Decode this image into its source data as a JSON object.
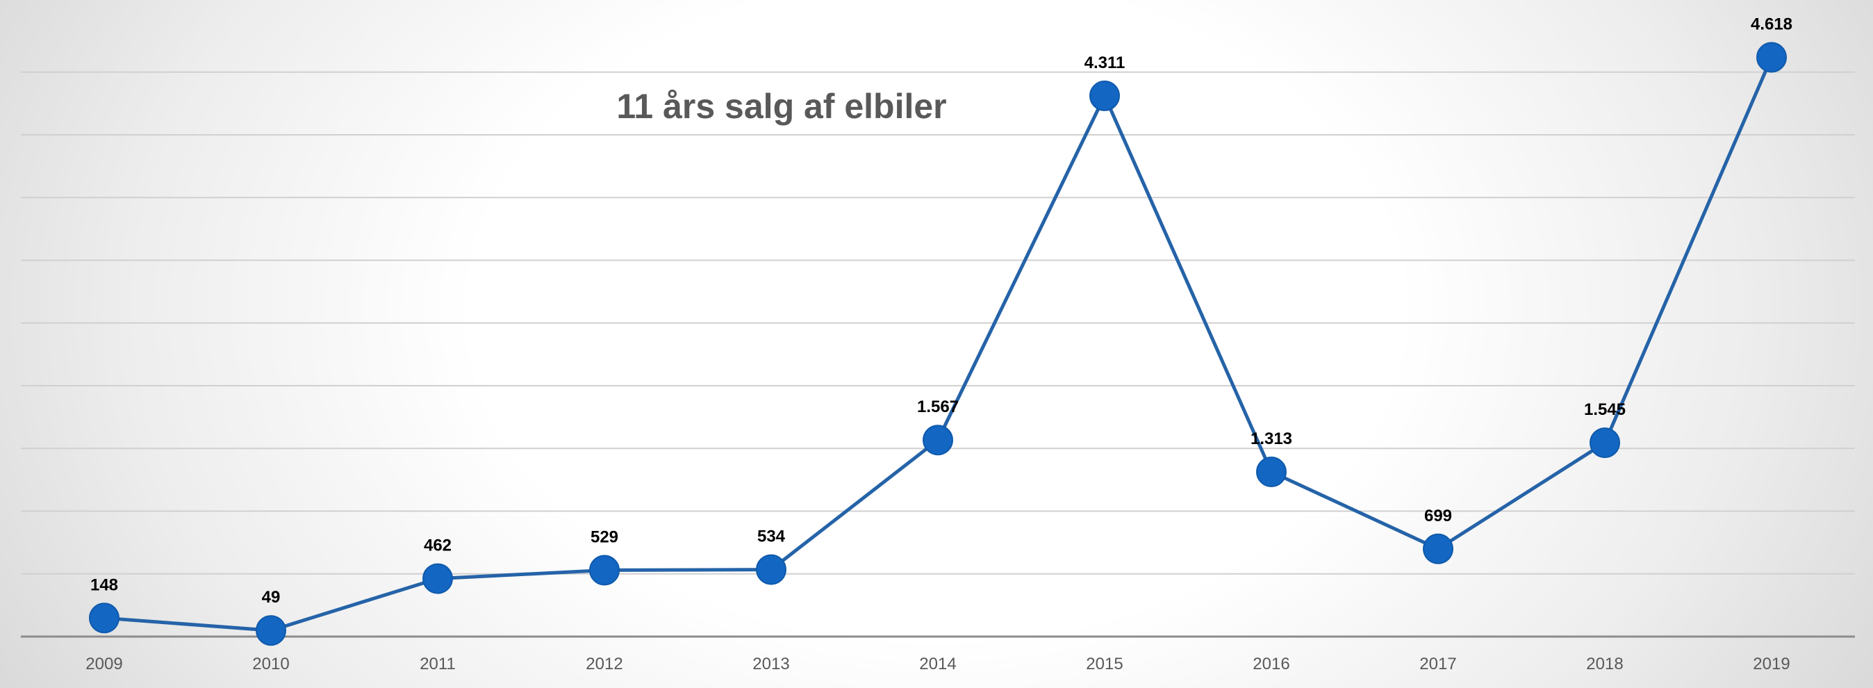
{
  "chart_data": {
    "type": "line",
    "title": "11 års salg af elbiler",
    "xlabel": "",
    "ylabel": "",
    "x": [
      "2009",
      "2010",
      "2011",
      "2012",
      "2013",
      "2014",
      "2015",
      "2016",
      "2017",
      "2018",
      "2019"
    ],
    "series": [
      {
        "values": [
          148,
          49,
          462,
          529,
          534,
          1567,
          4311,
          1313,
          699,
          1545,
          4618
        ],
        "labels": [
          "148",
          "49",
          "462",
          "529",
          "534",
          "1.567",
          "4.311",
          "1.313",
          "699",
          "1.545",
          "4.618"
        ]
      }
    ],
    "ylim": [
      0,
      5500
    ],
    "grid": true,
    "legend": "none",
    "colors": {
      "line": "#2563a8",
      "marker": "#1366c2",
      "grid": "#d0d0d0",
      "axis": "#8c8c8c"
    }
  }
}
